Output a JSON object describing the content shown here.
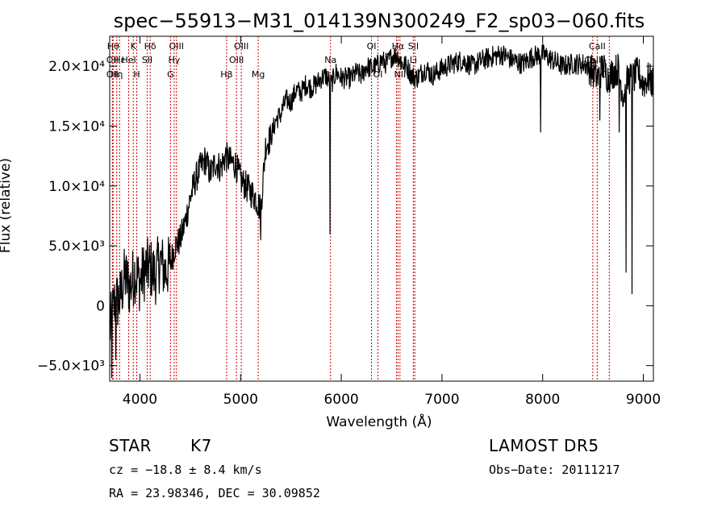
{
  "chart_data": {
    "type": "line",
    "title": "spec−55913−M31_014139N300249_F2_sp03−060.fits",
    "xlabel": "Wavelength (Å)",
    "ylabel": "Flux (relative)",
    "xlim": [
      3700,
      9100
    ],
    "ylim": [
      -6300,
      22500
    ],
    "x_ticks": [
      4000,
      5000,
      6000,
      7000,
      8000,
      9000
    ],
    "x_tick_labels": [
      "4000",
      "5000",
      "6000",
      "7000",
      "8000",
      "9000"
    ],
    "y_ticks": [
      -5000,
      0,
      5000,
      10000,
      15000,
      20000
    ],
    "y_tick_labels": [
      "−5.0×10³",
      "0",
      "5.0×10³",
      "1.0×10⁴",
      "1.5×10⁴",
      "2.0×10⁴"
    ],
    "grid": false,
    "line_color": "#000000",
    "marker_color": "#cc0000",
    "series": [
      {
        "x": [
          3700,
          3750,
          3800,
          3850,
          3900,
          3950,
          4000,
          4050,
          4100,
          4150,
          4200,
          4250,
          4300,
          4350,
          4400,
          4450,
          4500,
          4550,
          4600,
          4650,
          4700,
          4750,
          4800,
          4850,
          4900,
          4950,
          5000,
          5050,
          5100,
          5150,
          5200,
          5250,
          5300,
          5350,
          5400,
          5450,
          5500,
          5550,
          5600,
          5650,
          5700,
          5750,
          5800,
          5850,
          5900,
          5950,
          6000,
          6050,
          6100,
          6150,
          6200,
          6250,
          6300,
          6350,
          6400,
          6450,
          6500,
          6550,
          6600,
          6650,
          6700,
          6750,
          6800,
          6850,
          6900,
          6950,
          7000,
          7100,
          7200,
          7300,
          7400,
          7500,
          7600,
          7700,
          7800,
          7900,
          8000,
          8100,
          8200,
          8300,
          8400,
          8450,
          8500,
          8550,
          8600,
          8650,
          8700,
          8750,
          8800,
          8850,
          8900,
          8950,
          9000,
          9050,
          9100
        ],
        "y": [
          -2000,
          300,
          500,
          2500,
          1500,
          2800,
          2000,
          3000,
          3200,
          2500,
          3800,
          2800,
          3500,
          5000,
          5500,
          7000,
          9000,
          10500,
          11500,
          12200,
          11000,
          12000,
          11500,
          12500,
          12000,
          11800,
          10500,
          10000,
          9500,
          9000,
          8000,
          13500,
          14000,
          15500,
          16000,
          17200,
          17000,
          18000,
          17800,
          18500,
          18200,
          18500,
          19000,
          19200,
          18500,
          19500,
          19000,
          19000,
          19000,
          19500,
          19200,
          20000,
          19800,
          20000,
          20500,
          20200,
          20800,
          21000,
          20200,
          20000,
          19200,
          19000,
          19500,
          19800,
          19200,
          19500,
          19800,
          20200,
          20500,
          20000,
          20500,
          20800,
          21000,
          20500,
          20200,
          20800,
          21000,
          20500,
          20000,
          20200,
          20200,
          20000,
          19500,
          19000,
          20000,
          19000,
          19500,
          19800,
          17500,
          19000,
          19000,
          19500,
          18500,
          19000,
          18500
        ],
        "dips": [
          [
            5890,
            6000
          ],
          [
            8830,
            2800
          ],
          [
            8890,
            1000
          ],
          [
            8760,
            14500
          ],
          [
            5200,
            5500
          ],
          [
            3720,
            -6000
          ],
          [
            3760,
            -4500
          ],
          [
            8570,
            15500
          ],
          [
            7980,
            14500
          ]
        ]
      }
    ],
    "line_markers": [
      {
        "x": 3734,
        "label": "Hθ",
        "row": 0
      },
      {
        "x": 3727,
        "label": "OII",
        "row": 1
      },
      {
        "x": 3727,
        "label": "OII",
        "row": 2
      },
      {
        "x": 3770,
        "label": "Hη",
        "row": 2
      },
      {
        "x": 3798,
        "label": "Hε",
        "row": 1
      },
      {
        "x": 3889,
        "label": "HeI",
        "row": 1
      },
      {
        "x": 3934,
        "label": "K",
        "row": 0
      },
      {
        "x": 3969,
        "label": "H",
        "row": 2
      },
      {
        "x": 4072,
        "label": "SII",
        "row": 1
      },
      {
        "x": 4102,
        "label": "Hδ",
        "row": 0
      },
      {
        "x": 4304,
        "label": "G",
        "row": 2
      },
      {
        "x": 4340,
        "label": "Hγ",
        "row": 1
      },
      {
        "x": 4363,
        "label": "OIII",
        "row": 0
      },
      {
        "x": 4861,
        "label": "Hβ",
        "row": 2
      },
      {
        "x": 4959,
        "label": "OIII",
        "row": 1
      },
      {
        "x": 5007,
        "label": "OIII",
        "row": 0
      },
      {
        "x": 5175,
        "label": "Mg",
        "row": 2
      },
      {
        "x": 5893,
        "label": "Na",
        "row": 1
      },
      {
        "x": 6300,
        "label": "OI",
        "row": 0
      },
      {
        "x": 6364,
        "label": "OI",
        "row": 2
      },
      {
        "x": 6548,
        "label": "NII",
        "row": 1
      },
      {
        "x": 6563,
        "label": "Hα",
        "row": 0
      },
      {
        "x": 6583,
        "label": "NII",
        "row": 2
      },
      {
        "x": 6716,
        "label": "SII",
        "row": 0
      },
      {
        "x": 6716,
        "label": "Li",
        "row": 1
      },
      {
        "x": 6731,
        "label": "SII",
        "row": 2
      },
      {
        "x": 8498,
        "label": "CaII",
        "row": 1
      },
      {
        "x": 8542,
        "label": "CaII",
        "row": 0
      },
      {
        "x": 8662,
        "label": "CaII",
        "row": 2
      }
    ]
  },
  "info": {
    "class_label": "STAR",
    "subclass": "K7",
    "survey": "LAMOST  DR5",
    "cz": "cz = −18.8 ± 8.4 km/s",
    "obs_date": "Obs−Date: 20111217",
    "radec": "RA =  23.98346, DEC =  30.09852"
  }
}
